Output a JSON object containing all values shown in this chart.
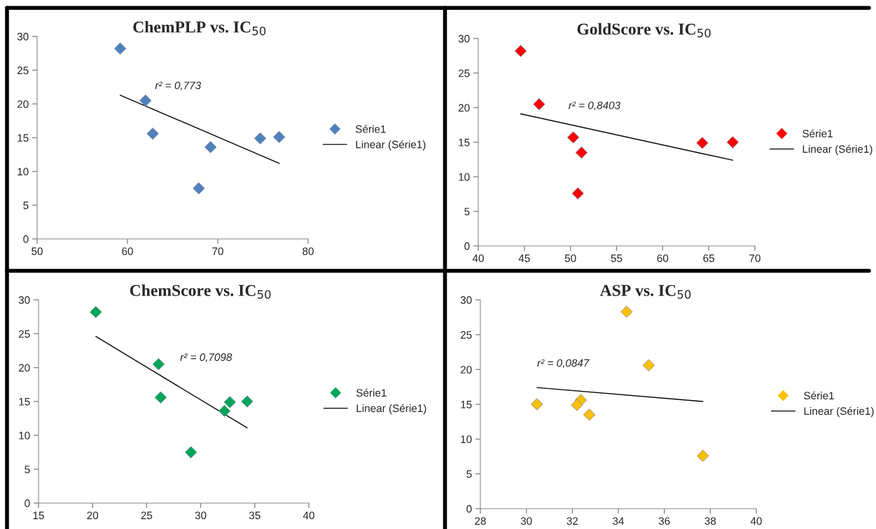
{
  "chart_data": [
    {
      "type": "scatter",
      "title": "ChemPLP vs. IC$_{50}$",
      "xlim": [
        50,
        80
      ],
      "xticks": [
        50,
        60,
        70,
        80
      ],
      "ylim": [
        0,
        30
      ],
      "yticks": [
        0,
        5,
        10,
        15,
        20,
        25,
        30
      ],
      "grid": false,
      "legend": "right",
      "marker": "diamond",
      "annotations": [
        "r² = 0,773"
      ],
      "series": [
        {
          "name": "Série1",
          "color": "#4f81bd",
          "x": [
            59.2,
            62.0,
            62.8,
            67.9,
            69.2,
            74.7,
            76.8
          ],
          "values": [
            28.2,
            20.5,
            15.6,
            7.5,
            13.6,
            14.9,
            15.1
          ]
        },
        {
          "name": "Linear (Série1)",
          "type": "line",
          "color": "#000000",
          "marker": "none",
          "x": [
            59.2,
            76.8
          ],
          "values": [
            21.3,
            11.2
          ]
        }
      ]
    },
    {
      "type": "scatter",
      "title": "GoldScore vs. IC$_{50}$",
      "xlim": [
        40,
        70
      ],
      "xticks": [
        40,
        45,
        50,
        55,
        60,
        65,
        70
      ],
      "ylim": [
        0,
        30
      ],
      "yticks": [
        0,
        5,
        10,
        15,
        20,
        25,
        30
      ],
      "grid": false,
      "legend": "right",
      "marker": "diamond",
      "annotations": [
        "r² = 0,8403"
      ],
      "series": [
        {
          "name": "Série1",
          "color": "#ff0000",
          "x": [
            44.6,
            46.6,
            50.3,
            50.8,
            51.2,
            64.3,
            67.6
          ],
          "values": [
            28.2,
            20.5,
            15.7,
            7.6,
            13.5,
            14.9,
            15.0
          ]
        },
        {
          "name": "Linear (Série1)",
          "type": "line",
          "color": "#000000",
          "marker": "none",
          "x": [
            44.6,
            67.6
          ],
          "values": [
            19.1,
            12.4
          ]
        }
      ]
    },
    {
      "type": "scatter",
      "title": "ChemScore vs. IC$_{50}$",
      "xlim": [
        15,
        40
      ],
      "xticks": [
        15,
        20,
        25,
        30,
        35,
        40
      ],
      "ylim": [
        0,
        30
      ],
      "yticks": [
        0,
        5,
        10,
        15,
        20,
        25,
        30
      ],
      "grid": false,
      "legend": "right",
      "marker": "diamond",
      "annotations": [
        "r² = 0,7098"
      ],
      "series": [
        {
          "name": "Série1",
          "color": "#00a65a",
          "x": [
            20.3,
            26.1,
            26.3,
            29.1,
            32.2,
            32.7,
            34.3
          ],
          "values": [
            28.2,
            20.5,
            15.6,
            7.5,
            13.6,
            14.9,
            15.0
          ]
        },
        {
          "name": "Linear (Série1)",
          "type": "line",
          "color": "#000000",
          "marker": "none",
          "x": [
            20.3,
            34.3
          ],
          "values": [
            24.6,
            11.1
          ]
        }
      ]
    },
    {
      "type": "scatter",
      "title": "ASP vs. IC$_{50}$",
      "xlim": [
        28,
        40
      ],
      "xticks": [
        28,
        30,
        32,
        34,
        36,
        38,
        40
      ],
      "ylim": [
        0,
        30
      ],
      "yticks": [
        0,
        5,
        10,
        15,
        20,
        25,
        30
      ],
      "grid": false,
      "legend": "right",
      "marker": "diamond",
      "annotations": [
        "r² = 0,0847"
      ],
      "series": [
        {
          "name": "Série1",
          "color": "#ffc000",
          "x": [
            34.36,
            35.32,
            32.37,
            32.2,
            32.74,
            30.46,
            37.68
          ],
          "values": [
            28.3,
            20.6,
            15.6,
            14.9,
            13.5,
            15.0,
            7.6
          ]
        },
        {
          "name": "Linear (Série1)",
          "type": "line",
          "color": "#000000",
          "marker": "none",
          "x": [
            30.46,
            37.68
          ],
          "values": [
            17.4,
            15.4
          ]
        }
      ]
    }
  ]
}
